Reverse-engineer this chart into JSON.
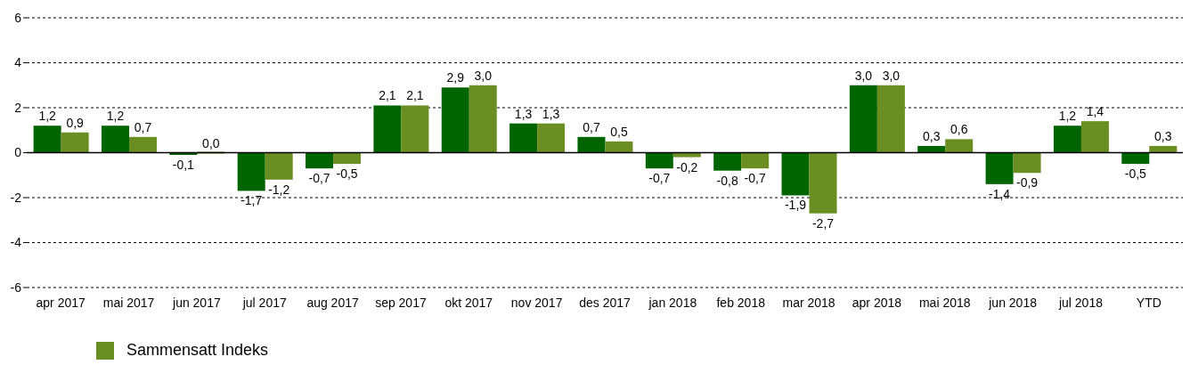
{
  "chart_data": {
    "type": "bar",
    "categories": [
      "apr 2017",
      "mai 2017",
      "jun 2017",
      "jul 2017",
      "aug 2017",
      "sep 2017",
      "okt 2017",
      "nov 2017",
      "des 2017",
      "jan 2018",
      "feb 2018",
      "mar 2018",
      "apr 2018",
      "mai 2018",
      "jun 2018",
      "jul 2018",
      "YTD"
    ],
    "series": [
      {
        "color": "#006400",
        "values": [
          1.2,
          1.2,
          -0.1,
          -1.7,
          -0.7,
          2.1,
          2.9,
          1.3,
          0.7,
          -0.7,
          -0.8,
          -1.9,
          3.0,
          0.3,
          -1.4,
          1.2,
          -0.5
        ],
        "value_labels": [
          "1,2",
          "1,2",
          "-0,1",
          "-1,7",
          "-0,7",
          "2,1",
          "2,9",
          "1,3",
          "0,7",
          "-0,7",
          "-0,8",
          "-1,9",
          "3,0",
          "0,3",
          "-1,4",
          "1,2",
          "-0,5"
        ]
      },
      {
        "name": "Sammensatt Indeks",
        "color": "#6b8e23",
        "values": [
          0.9,
          0.7,
          0.0,
          -1.2,
          -0.5,
          2.1,
          3.0,
          1.3,
          0.5,
          -0.2,
          -0.7,
          -2.7,
          3.0,
          0.6,
          -0.9,
          1.4,
          0.3
        ],
        "value_labels": [
          "0,9",
          "0,7",
          "0,0",
          "-1,2",
          "-0,5",
          "2,1",
          "3,0",
          "1,3",
          "0,5",
          "-0,2",
          "-0,7",
          "-2,7",
          "3,0",
          "0,6",
          "-0,9",
          "1,4",
          "0,3"
        ]
      }
    ],
    "ylim": [
      -6,
      6
    ],
    "yticks": [
      -6,
      -4,
      -2,
      0,
      2,
      4,
      6
    ],
    "grid": "y",
    "legend": "bottom"
  }
}
